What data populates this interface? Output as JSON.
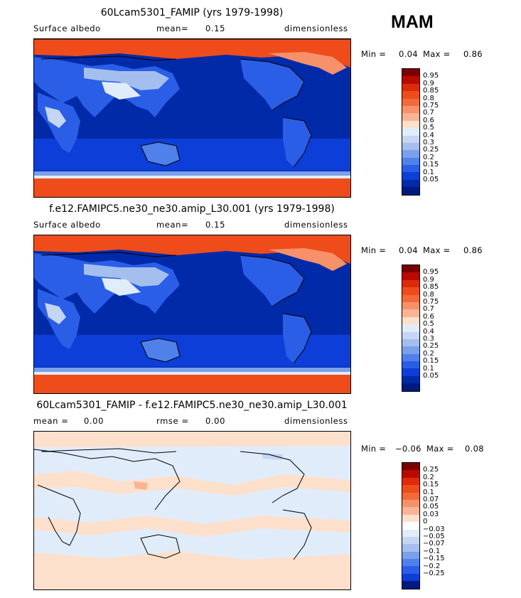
{
  "season": "MAM",
  "panels": [
    {
      "title": "60Lcam5301_FAMIP (yrs 1979-1998)",
      "left_label": "Surface albedo",
      "stat_label": "mean=",
      "stat_value": "0.15",
      "stat2_label": "",
      "stat2_value": "",
      "units": "dimensionless",
      "min_label": "Min =",
      "min_value": "0.04",
      "max_label": "Max =",
      "max_value": "0.86",
      "type": "field",
      "colorbar": {
        "colors": [
          "#7a0000",
          "#b80a00",
          "#dd2a08",
          "#ef4c1c",
          "#f36a3a",
          "#f7916a",
          "#fab494",
          "#fde0cc",
          "#e1ecfa",
          "#c4d6f3",
          "#a4bfee",
          "#7aa0ea",
          "#5080ea",
          "#2a5ee6",
          "#0d3ed8",
          "#002aa8",
          "#001a80"
        ],
        "labels": [
          "0.95",
          "0.9",
          "0.85",
          "0.8",
          "0.75",
          "0.7",
          "0.6",
          "0.5",
          "0.4",
          "0.3",
          "0.25",
          "0.2",
          "0.15",
          "0.1",
          "0.05"
        ]
      }
    },
    {
      "title": "f.e12.FAMIPC5.ne30_ne30.amip_L30.001 (yrs 1979-1998)",
      "left_label": "Surface albedo",
      "stat_label": "mean=",
      "stat_value": "0.15",
      "stat2_label": "",
      "stat2_value": "",
      "units": "dimensionless",
      "min_label": "Min =",
      "min_value": "0.04",
      "max_label": "Max =",
      "max_value": "0.86",
      "type": "field",
      "colorbar": {
        "colors": [
          "#7a0000",
          "#b80a00",
          "#dd2a08",
          "#ef4c1c",
          "#f36a3a",
          "#f7916a",
          "#fab494",
          "#fde0cc",
          "#e1ecfa",
          "#c4d6f3",
          "#a4bfee",
          "#7aa0ea",
          "#5080ea",
          "#2a5ee6",
          "#0d3ed8",
          "#002aa8",
          "#001a80"
        ],
        "labels": [
          "0.95",
          "0.9",
          "0.85",
          "0.8",
          "0.75",
          "0.7",
          "0.6",
          "0.5",
          "0.4",
          "0.3",
          "0.25",
          "0.2",
          "0.15",
          "0.1",
          "0.05"
        ]
      }
    },
    {
      "title": "60Lcam5301_FAMIP - f.e12.FAMIPC5.ne30_ne30.amip_L30.001",
      "left_label": "mean =",
      "stat_label": "0.00",
      "stat_value": "",
      "stat2_label": "rmse =",
      "stat2_value": "0.00",
      "units": "dimensionless",
      "min_label": "Min =",
      "min_value": "−0.06",
      "max_label": "Max =",
      "max_value": "0.08",
      "type": "diff",
      "colorbar": {
        "colors": [
          "#7a0000",
          "#b80a00",
          "#dd2a08",
          "#ef4c1c",
          "#f36a3a",
          "#f7916a",
          "#fab494",
          "#fde0cc",
          "#ffffff",
          "#e1ecfa",
          "#c4d6f3",
          "#a4bfee",
          "#7aa0ea",
          "#5080ea",
          "#2a5ee6",
          "#0d3ed8",
          "#001a80"
        ],
        "labels": [
          "0.25",
          "0.2",
          "0.15",
          "0.1",
          "0.07",
          "0.05",
          "0.03",
          "0",
          "−0.03",
          "−0.05",
          "−0.07",
          "−0.1",
          "−0.15",
          "−0.2",
          "−0.25"
        ]
      }
    }
  ]
}
